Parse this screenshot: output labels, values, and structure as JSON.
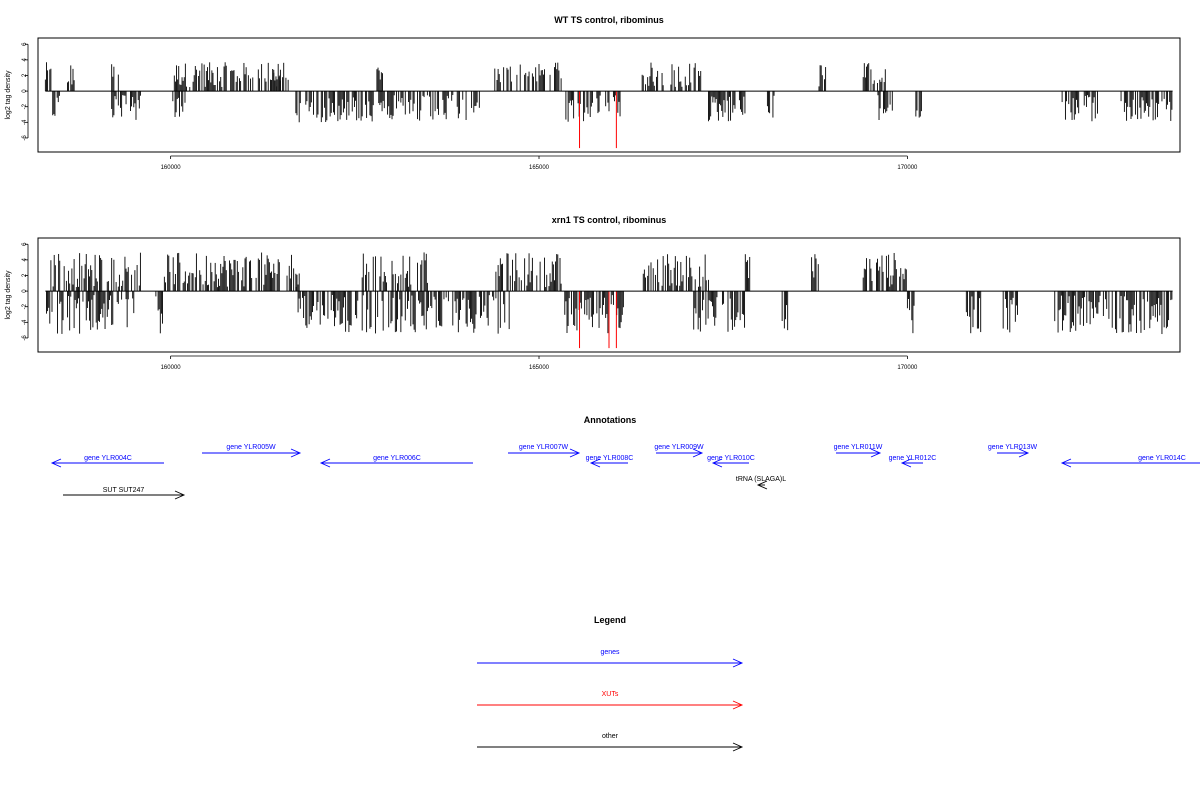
{
  "chart_data": [
    {
      "type": "bar",
      "title": "WT TS control, ribominus",
      "ylabel": "log2 tag density",
      "xlabel": "",
      "xlim": [
        158200,
        173700
      ],
      "ylim": [
        -7.8,
        6.8
      ],
      "xticks": [
        160000,
        165000,
        170000
      ],
      "yticks": [
        6,
        4,
        2,
        0,
        -2,
        -4,
        -6
      ],
      "grid": false,
      "positive_segments": [
        [
          158300,
          158400
        ],
        [
          158600,
          158700
        ],
        [
          159200,
          159300
        ],
        [
          160050,
          161500
        ],
        [
          161400,
          161600
        ],
        [
          162800,
          162900
        ],
        [
          164400,
          165300
        ],
        [
          166400,
          167200
        ],
        [
          168800,
          168900
        ],
        [
          169400,
          169700
        ]
      ],
      "negative_segments": [
        [
          158400,
          158500
        ],
        [
          159200,
          159600
        ],
        [
          160000,
          160200
        ],
        [
          161700,
          164200
        ],
        [
          165350,
          166100
        ],
        [
          167300,
          167800
        ],
        [
          168100,
          168200
        ],
        [
          169600,
          169800
        ],
        [
          170100,
          170200
        ],
        [
          172100,
          172600
        ],
        [
          172900,
          173600
        ]
      ],
      "highlight": [
        {
          "x": 165550,
          "y": -7.3
        },
        {
          "x": 166050,
          "y": -7.3
        }
      ]
    },
    {
      "type": "bar",
      "title": "xrn1 TS control, ribominus",
      "ylabel": "log2 tag density",
      "xlabel": "",
      "xlim": [
        158200,
        173700
      ],
      "ylim": [
        -7.8,
        6.8
      ],
      "xticks": [
        160000,
        165000,
        170000
      ],
      "yticks": [
        6,
        4,
        2,
        0,
        -2,
        -4,
        -6
      ],
      "grid": false,
      "positive_segments": [
        [
          158300,
          159600
        ],
        [
          159900,
          161700
        ],
        [
          161700,
          161800
        ],
        [
          162600,
          163500
        ],
        [
          164400,
          165300
        ],
        [
          166400,
          167300
        ],
        [
          167800,
          167900
        ],
        [
          168700,
          168800
        ],
        [
          169400,
          170000
        ]
      ],
      "negative_segments": [
        [
          158300,
          159500
        ],
        [
          159800,
          159900
        ],
        [
          161700,
          164600
        ],
        [
          165350,
          166150
        ],
        [
          167100,
          167800
        ],
        [
          168300,
          168400
        ],
        [
          170000,
          170100
        ],
        [
          170800,
          171000
        ],
        [
          171300,
          171500
        ],
        [
          172000,
          173600
        ]
      ],
      "highlight": [
        {
          "x": 165550,
          "y": -7.3
        },
        {
          "x": 165950,
          "y": -7.3
        },
        {
          "x": 166050,
          "y": -7.3
        }
      ]
    }
  ],
  "annotations": {
    "title": "Annotations",
    "items": [
      {
        "label": "gene YLR004C",
        "color": "#0000ff",
        "dir": "left",
        "x1": 52,
        "x2": 164,
        "row": 1
      },
      {
        "label": "gene YLR005W",
        "color": "#0000ff",
        "dir": "right",
        "x1": 202,
        "x2": 300,
        "row": 0
      },
      {
        "label": "gene YLR006C",
        "color": "#0000ff",
        "dir": "left",
        "x1": 321,
        "x2": 473,
        "row": 1
      },
      {
        "label": "gene YLR007W",
        "color": "#0000ff",
        "dir": "right",
        "x1": 508,
        "x2": 579,
        "row": 0
      },
      {
        "label": "gene YLR008C",
        "color": "#0000ff",
        "dir": "left",
        "x1": 591,
        "x2": 628,
        "row": 1
      },
      {
        "label": "gene YLR009W",
        "color": "#0000ff",
        "dir": "right",
        "x1": 656,
        "x2": 702,
        "row": 0
      },
      {
        "label": "gene YLR010C",
        "color": "#0000ff",
        "dir": "left",
        "x1": 713,
        "x2": 749,
        "row": 1
      },
      {
        "label": "gene YLR011W",
        "color": "#0000ff",
        "dir": "right",
        "x1": 836,
        "x2": 880,
        "row": 0
      },
      {
        "label": "gene YLR012C",
        "color": "#0000ff",
        "dir": "left",
        "x1": 902,
        "x2": 923,
        "row": 1
      },
      {
        "label": "gene YLR013W",
        "color": "#0000ff",
        "dir": "right",
        "x1": 997,
        "x2": 1028,
        "row": 0
      },
      {
        "label": "gene YLR014C",
        "color": "#0000ff",
        "dir": "left",
        "x1": 1062,
        "x2": 1200,
        "row": 1
      },
      {
        "label": "tRNA (SLAGA)L",
        "color": "#000000",
        "dir": "left",
        "x1": 758,
        "x2": 765,
        "row": 2
      },
      {
        "label": "SUT SUT247",
        "color": "#000000",
        "dir": "right",
        "x1": 63,
        "x2": 184,
        "row": 3
      }
    ]
  },
  "legend": {
    "title": "Legend",
    "items": [
      {
        "label": "genes",
        "color": "#0000ff"
      },
      {
        "label": "XUTs",
        "color": "#ff0000"
      },
      {
        "label": "other",
        "color": "#000000"
      }
    ]
  }
}
